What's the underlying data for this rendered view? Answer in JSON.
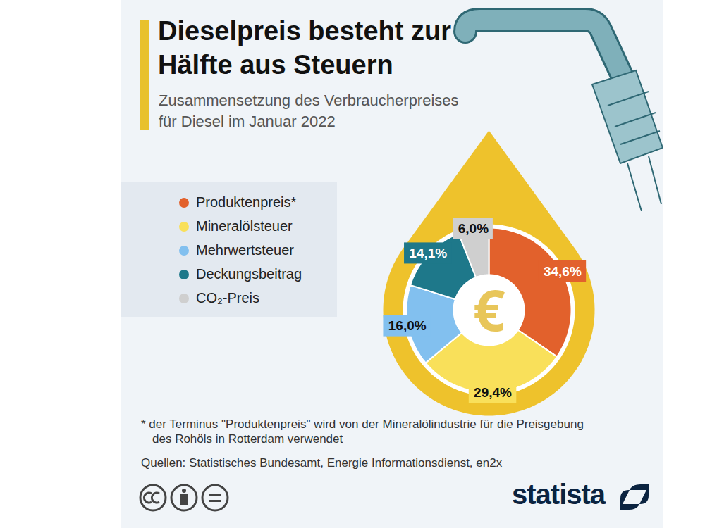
{
  "chart_data": {
    "type": "pie",
    "title": "Dieselpreis besteht zur Hälfte aus Steuern",
    "subtitle": "Zusammensetzung des Verbraucherpreises für Diesel im Januar 2022",
    "categories": [
      "Produktenpreis*",
      "Mineralölsteuer",
      "Mehrwertsteuer",
      "Deckungsbeitrag",
      "CO₂-Preis"
    ],
    "values": [
      34.6,
      29.4,
      16.0,
      14.1,
      6.0
    ],
    "value_labels": [
      "34,6%",
      "29,4%",
      "16,0%",
      "14,1%",
      "6,0%"
    ],
    "colors": [
      "#e2612c",
      "#f9e05a",
      "#82c0ef",
      "#1e788a",
      "#cfcfcf"
    ],
    "data_labels": true,
    "legend": "left",
    "center_label": "€",
    "footnote": "* der Terminus \"Produktenpreis\" wird von der Mineralölindustrie für die Preisgebung des Rohöls in Rotterdam verwendet",
    "source": "Quellen: Statistisches Bundesamt, Energie Informationsdienst, en2x",
    "brand": "statista"
  }
}
